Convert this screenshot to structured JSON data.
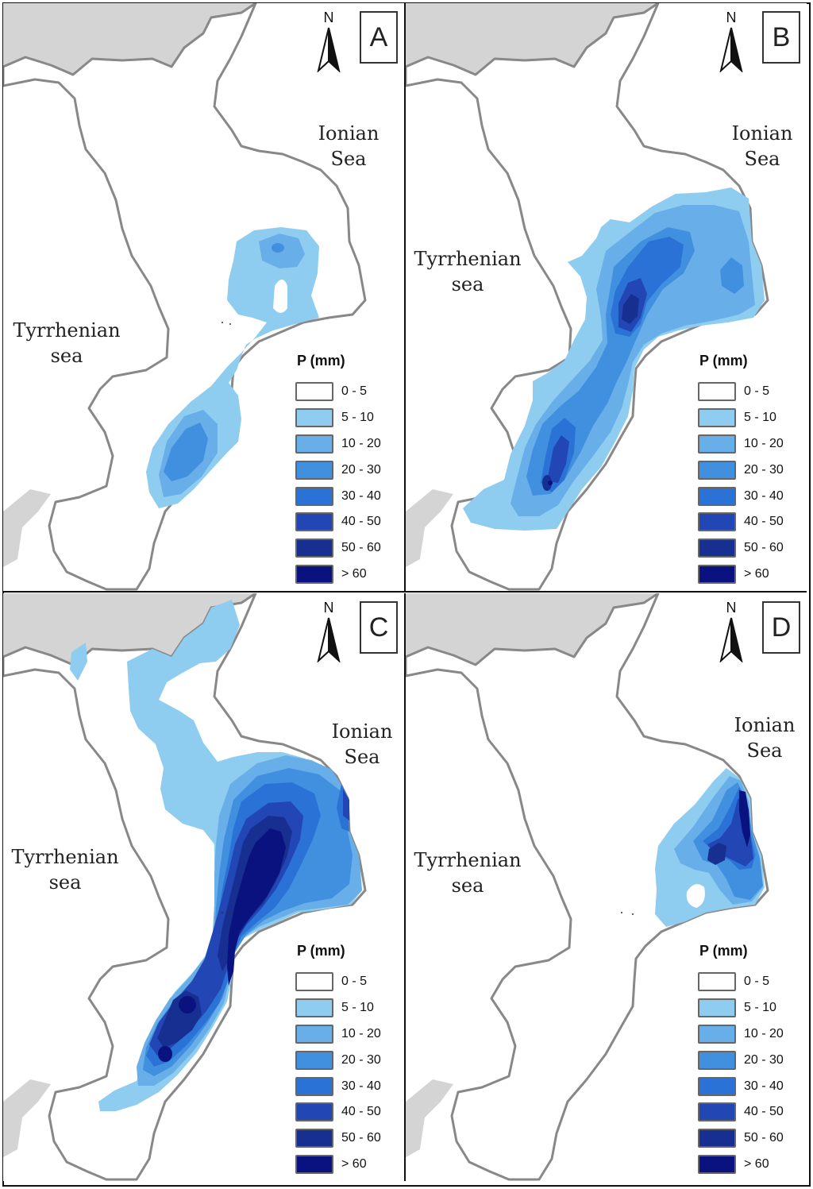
{
  "legend": {
    "title": "P (mm)",
    "classes": [
      {
        "label": "0 - 5",
        "color": "#ffffff"
      },
      {
        "label": "5 - 10",
        "color": "#8ecdf0"
      },
      {
        "label": "10 - 20",
        "color": "#68aee8"
      },
      {
        "label": "20 - 30",
        "color": "#4190e0"
      },
      {
        "label": "30 - 40",
        "color": "#2a72d6"
      },
      {
        "label": "40 - 50",
        "color": "#2246b4"
      },
      {
        "label": "50 - 60",
        "color": "#182f92"
      },
      {
        "label": "> 60",
        "color": "#0a1280"
      }
    ]
  },
  "north_label": "N",
  "colors": {
    "land": "#ffffff",
    "neighbor_land": "#d4d4d4",
    "coast": "#888888"
  },
  "panels": [
    {
      "id": "A",
      "ionian": [
        "Ionian",
        "Sea"
      ],
      "tyrrhenian": [
        "Tyrrhenian",
        "sea"
      ]
    },
    {
      "id": "B",
      "ionian": [
        "Ionian",
        "Sea"
      ],
      "tyrrhenian": [
        "Tyrrhenian",
        "sea"
      ]
    },
    {
      "id": "C",
      "ionian": [
        "Ionian",
        "Sea"
      ],
      "tyrrhenian": [
        "Tyrrhenian",
        "sea"
      ]
    },
    {
      "id": "D",
      "ionian": [
        "Ionian",
        "Sea"
      ],
      "tyrrhenian": [
        "Tyrrhenian",
        "sea"
      ]
    }
  ]
}
